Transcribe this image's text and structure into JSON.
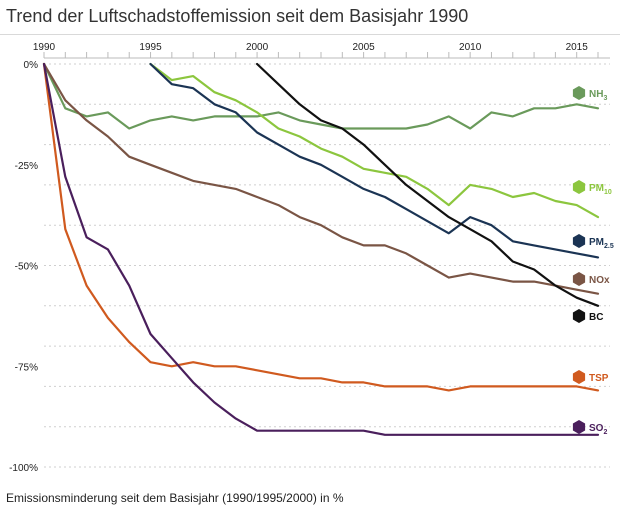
{
  "title": "Trend der Luftschadstoffemission seit dem Basisjahr 1990",
  "caption": "Emissionsminderung seit dem Basisjahr (1990/1995/2000) in %",
  "chart_data": {
    "type": "line",
    "title": "Trend der Luftschadstoffemission seit dem Basisjahr 1990",
    "xlabel": "",
    "ylabel": "",
    "xlim": [
      1990,
      2016
    ],
    "ylim": [
      -100,
      0
    ],
    "x_ticks": [
      "1990",
      "1995",
      "2000",
      "2005",
      "2010",
      "2015"
    ],
    "y_ticks": [
      "0%",
      "-25%",
      "-50%",
      "-75%",
      "-100%"
    ],
    "grid": "horizontal dotted",
    "legend": "labels at right end of each line",
    "series": [
      {
        "name": "NH3",
        "label_main": "NH",
        "label_sub": "3",
        "color": "#6a9a5b",
        "x": [
          1990,
          1991,
          1992,
          1993,
          1994,
          1995,
          1996,
          1997,
          1998,
          1999,
          2000,
          2001,
          2002,
          2003,
          2004,
          2005,
          2006,
          2007,
          2008,
          2009,
          2010,
          2011,
          2012,
          2013,
          2014,
          2015,
          2016
        ],
        "y": [
          0,
          -11,
          -13,
          -12,
          -16,
          -14,
          -13,
          -14,
          -13,
          -13,
          -13,
          -12,
          -14,
          -15,
          -16,
          -16,
          -16,
          -16,
          -15,
          -13,
          -16,
          -12,
          -13,
          -11,
          -11,
          -10,
          -11
        ]
      },
      {
        "name": "PM10",
        "label_main": "PM",
        "label_sub": "10",
        "color": "#8cc63e",
        "x": [
          1995,
          1996,
          1997,
          1998,
          1999,
          2000,
          2001,
          2002,
          2003,
          2004,
          2005,
          2006,
          2007,
          2008,
          2009,
          2010,
          2011,
          2012,
          2013,
          2014,
          2015,
          2016
        ],
        "y": [
          0,
          -4,
          -3,
          -7,
          -9,
          -12,
          -16,
          -18,
          -21,
          -23,
          -26,
          -27,
          -28,
          -31,
          -35,
          -30,
          -31,
          -33,
          -32,
          -34,
          -35,
          -38
        ]
      },
      {
        "name": "PM2.5",
        "label_main": "PM",
        "label_sub": "2.5",
        "color": "#1b3454",
        "x": [
          1995,
          1996,
          1997,
          1998,
          1999,
          2000,
          2001,
          2002,
          2003,
          2004,
          2005,
          2006,
          2007,
          2008,
          2009,
          2010,
          2011,
          2012,
          2013,
          2014,
          2015,
          2016
        ],
        "y": [
          0,
          -5,
          -6,
          -10,
          -12,
          -17,
          -20,
          -23,
          -25,
          -28,
          -31,
          -33,
          -36,
          -39,
          -42,
          -38,
          -40,
          -44,
          -45,
          -46,
          -47,
          -48
        ]
      },
      {
        "name": "NOx",
        "label_main": "NOx",
        "label_sub": "",
        "color": "#7a5545",
        "x": [
          1990,
          1991,
          1992,
          1993,
          1994,
          1995,
          1996,
          1997,
          1998,
          1999,
          2000,
          2001,
          2002,
          2003,
          2004,
          2005,
          2006,
          2007,
          2008,
          2009,
          2010,
          2011,
          2012,
          2013,
          2014,
          2015,
          2016
        ],
        "y": [
          0,
          -9,
          -14,
          -18,
          -23,
          -25,
          -27,
          -29,
          -30,
          -31,
          -33,
          -35,
          -38,
          -40,
          -43,
          -45,
          -45,
          -47,
          -50,
          -53,
          -52,
          -53,
          -54,
          -54,
          -55,
          -56,
          -57
        ]
      },
      {
        "name": "BC",
        "label_main": "BC",
        "label_sub": "",
        "color": "#111111",
        "x": [
          2000,
          2001,
          2002,
          2003,
          2004,
          2005,
          2006,
          2007,
          2008,
          2009,
          2010,
          2011,
          2012,
          2013,
          2014,
          2015,
          2016
        ],
        "y": [
          0,
          -5,
          -10,
          -14,
          -16,
          -20,
          -25,
          -30,
          -34,
          -38,
          -41,
          -44,
          -49,
          -51,
          -55,
          -58,
          -60
        ]
      },
      {
        "name": "TSP",
        "label_main": "TSP",
        "label_sub": "",
        "color": "#d05a1f",
        "x": [
          1990,
          1991,
          1992,
          1993,
          1994,
          1995,
          1996,
          1997,
          1998,
          1999,
          2000,
          2001,
          2002,
          2003,
          2004,
          2005,
          2006,
          2007,
          2008,
          2009,
          2010,
          2011,
          2012,
          2013,
          2014,
          2015,
          2016
        ],
        "y": [
          0,
          -41,
          -55,
          -63,
          -69,
          -74,
          -75,
          -74,
          -75,
          -75,
          -76,
          -77,
          -78,
          -78,
          -79,
          -79,
          -80,
          -80,
          -80,
          -81,
          -80,
          -80,
          -80,
          -80,
          -80,
          -80,
          -81
        ]
      },
      {
        "name": "SO2",
        "label_main": "SO",
        "label_sub": "2",
        "color": "#4a1f5c",
        "x": [
          1990,
          1991,
          1992,
          1993,
          1994,
          1995,
          1996,
          1997,
          1998,
          1999,
          2000,
          2001,
          2002,
          2003,
          2004,
          2005,
          2006,
          2007,
          2008,
          2009,
          2010,
          2011,
          2012,
          2013,
          2014,
          2015,
          2016
        ],
        "y": [
          0,
          -28,
          -43,
          -46,
          -55,
          -67,
          -73,
          -79,
          -84,
          -88,
          -91,
          -91,
          -91,
          -91,
          -91,
          -91,
          -92,
          -92,
          -92,
          -92,
          -92,
          -92,
          -92,
          -92,
          -92,
          -92,
          -92
        ]
      }
    ]
  }
}
